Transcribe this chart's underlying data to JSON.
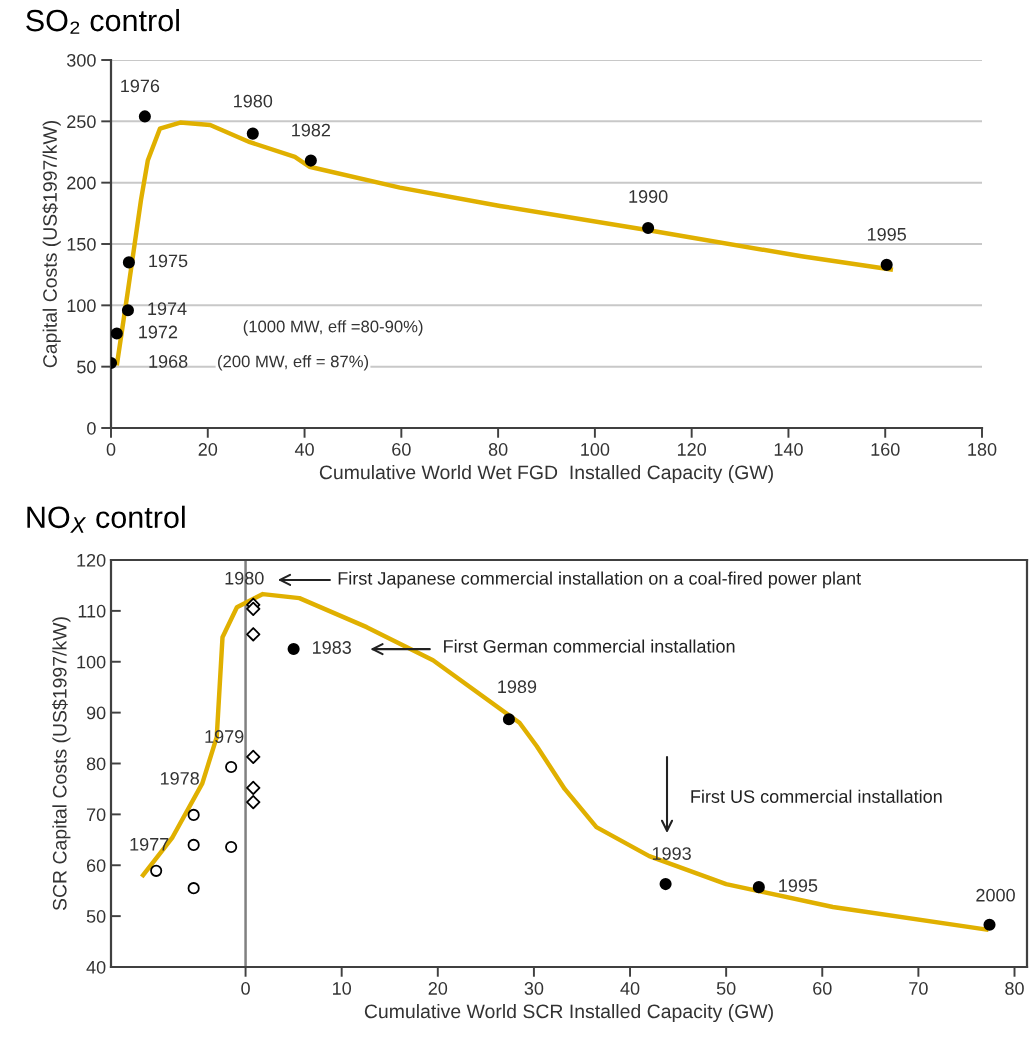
{
  "chart_data": [
    {
      "type": "scatter",
      "title": "SO₂ control",
      "xlabel": "Cumulative World Wet FGD  Installed Capacity (GW)",
      "ylabel": "Capital Costs (US$1997/kW)",
      "xlim": [
        0,
        180
      ],
      "xticks": [
        0,
        20,
        40,
        60,
        80,
        100,
        120,
        140,
        160,
        180
      ],
      "ylim": [
        0,
        300
      ],
      "yticks": [
        0,
        50,
        100,
        150,
        200,
        250,
        300
      ],
      "grid": "y",
      "legend": false,
      "series": [
        {
          "marker": "circle",
          "color": "#000000",
          "x": [
            0,
            1.2,
            3.5,
            3.7,
            7,
            29.3,
            41.3,
            111,
            160.3
          ],
          "values": [
            53,
            77,
            96,
            135,
            254,
            240,
            218,
            163,
            133
          ]
        },
        {
          "type": "line",
          "marker": "none",
          "color": "#e0b000",
          "x": [
            1.2,
            3.5,
            6.2,
            7.6,
            10.1,
            14.3,
            20.5,
            28.7,
            38,
            41,
            59.7,
            80.4,
            111.4,
            142.7,
            161.6
          ],
          "values": [
            51,
            112,
            186,
            218,
            244,
            249,
            247,
            233,
            221,
            213,
            196,
            181,
            161,
            140,
            129
          ]
        }
      ],
      "annotations": [
        {
          "text": "1968",
          "x": 0,
          "y": 53
        },
        {
          "text": "1972",
          "x": 1.2,
          "y": 77
        },
        {
          "text": "1974",
          "x": 3.5,
          "y": 96
        },
        {
          "text": "1975",
          "x": 3.7,
          "y": 135
        },
        {
          "text": "1976",
          "x": 7,
          "y": 254
        },
        {
          "text": "1980",
          "x": 29.3,
          "y": 240
        },
        {
          "text": "1982",
          "x": 41.3,
          "y": 218
        },
        {
          "text": "1990",
          "x": 111,
          "y": 163
        },
        {
          "text": "1995",
          "x": 160.3,
          "y": 133
        },
        "(1000 MW, eff =80-90%)",
        "(200 MW, eff = 87%)"
      ]
    },
    {
      "type": "scatter",
      "title": "NO$_{X}$ control",
      "xlabel": "Cumulative World SCR Installed Capacity (GW)",
      "ylabel": "SCR Capital Costs (US$1997/kW)",
      "xlim": [
        -14,
        81.3
      ],
      "xticks": [
        0,
        10,
        20,
        30,
        40,
        50,
        60,
        70,
        80
      ],
      "ylim": [
        40,
        120
      ],
      "yticks": [
        40,
        50,
        60,
        70,
        80,
        90,
        100,
        110,
        120
      ],
      "grid": false,
      "legend": false,
      "ref_lines": [
        {
          "axis": "x",
          "value": 0,
          "color": "#808080"
        }
      ],
      "series": [
        {
          "marker": "circle",
          "color": "#000000",
          "x": [
            5.0,
            27.4,
            43.7,
            53.4,
            77.4
          ],
          "values": [
            102.5,
            88.7,
            56.3,
            55.7,
            48.3
          ]
        },
        {
          "marker": "circle",
          "color": "#000000",
          "x": [
            -9.3,
            -5.4,
            -5.4,
            -5.4,
            -1.5,
            -1.5
          ],
          "values": [
            58.9,
            69.9,
            64.0,
            55.5,
            79.3,
            63.6
          ]
        },
        {
          "marker": "diamond",
          "color": "#000000",
          "x": [
            0.8,
            0.8,
            0.8,
            0.8,
            0.8,
            0.8
          ],
          "values": [
            111.2,
            110.4,
            105.4,
            81.3,
            75.2,
            72.4
          ]
        },
        {
          "type": "line",
          "marker": "none",
          "color": "#e0b000",
          "x": [
            -10.8,
            -7.6,
            -4.5,
            -3.0,
            -2.7,
            -2.4,
            -0.9,
            1.8,
            5.6,
            12.6,
            19.5,
            28.5,
            30.3,
            33.2,
            36.5,
            42,
            50,
            61.1,
            77.3
          ],
          "values": [
            57.7,
            65.5,
            76.1,
            85.2,
            95,
            104.8,
            110.7,
            113.3,
            112.5,
            106.8,
            100.3,
            88,
            83.4,
            75,
            67.5,
            61.8,
            56.3,
            51.8,
            47.3
          ]
        }
      ],
      "annotations": [
        {
          "text": "1977",
          "x": -9.3,
          "y": 58.9
        },
        {
          "text": "1978",
          "x": -5.4,
          "y": 69.9
        },
        {
          "text": "1979",
          "x": -1.5,
          "y": 79.3
        },
        {
          "text": "1980",
          "x": 0.8,
          "y": 111.2
        },
        {
          "text": "1983",
          "x": 5.0,
          "y": 102.5
        },
        {
          "text": "1989",
          "x": 27.4,
          "y": 88.7
        },
        {
          "text": "1993",
          "x": 43.7,
          "y": 56.3
        },
        {
          "text": "1995",
          "x": 53.4,
          "y": 55.7
        },
        {
          "text": "2000",
          "x": 77.4,
          "y": 48.3
        },
        "First Japanese commercial installation on a coal-fired power plant",
        "First German commercial installation",
        "First US commercial installation"
      ]
    }
  ]
}
